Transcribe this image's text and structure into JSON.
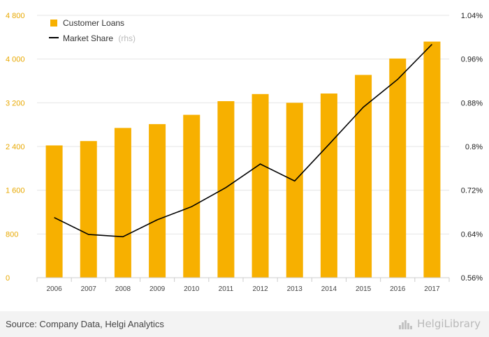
{
  "chart_data": {
    "type": "bar",
    "categories": [
      "2006",
      "2007",
      "2008",
      "2009",
      "2010",
      "2011",
      "2012",
      "2013",
      "2014",
      "2015",
      "2016",
      "2017"
    ],
    "series": [
      {
        "name": "Customer Loans",
        "type": "bar",
        "axis": "left",
        "color": "#f7b000",
        "values": [
          2420,
          2500,
          2740,
          2810,
          2980,
          3230,
          3360,
          3200,
          3370,
          3710,
          4010,
          4320
        ]
      },
      {
        "name": "Market Share",
        "name_suffix": "(rhs)",
        "type": "line",
        "axis": "right",
        "color": "#000000",
        "values": [
          0.67,
          0.639,
          0.635,
          0.666,
          0.69,
          0.725,
          0.768,
          0.737,
          0.804,
          0.872,
          0.923,
          0.987
        ]
      }
    ],
    "left_axis": {
      "min": 0,
      "max": 4800,
      "ticks": [
        0,
        800,
        1600,
        2400,
        3200,
        4000,
        4800
      ],
      "tick_labels": [
        "0",
        "800",
        "1 600",
        "2 400",
        "3 200",
        "4 000",
        "4 800"
      ]
    },
    "right_axis": {
      "min": 0.56,
      "max": 1.04,
      "ticks": [
        0.56,
        0.64,
        0.72,
        0.8,
        0.88,
        0.96,
        1.04
      ],
      "tick_labels": [
        "0.56%",
        "0.64%",
        "0.72%",
        "0.8%",
        "0.88%",
        "0.96%",
        "1.04%"
      ]
    },
    "legend_position": "top-left",
    "grid": true
  },
  "footer": {
    "source": "Source: Company Data, Helgi Analytics",
    "brand": "HelgiLibrary"
  }
}
